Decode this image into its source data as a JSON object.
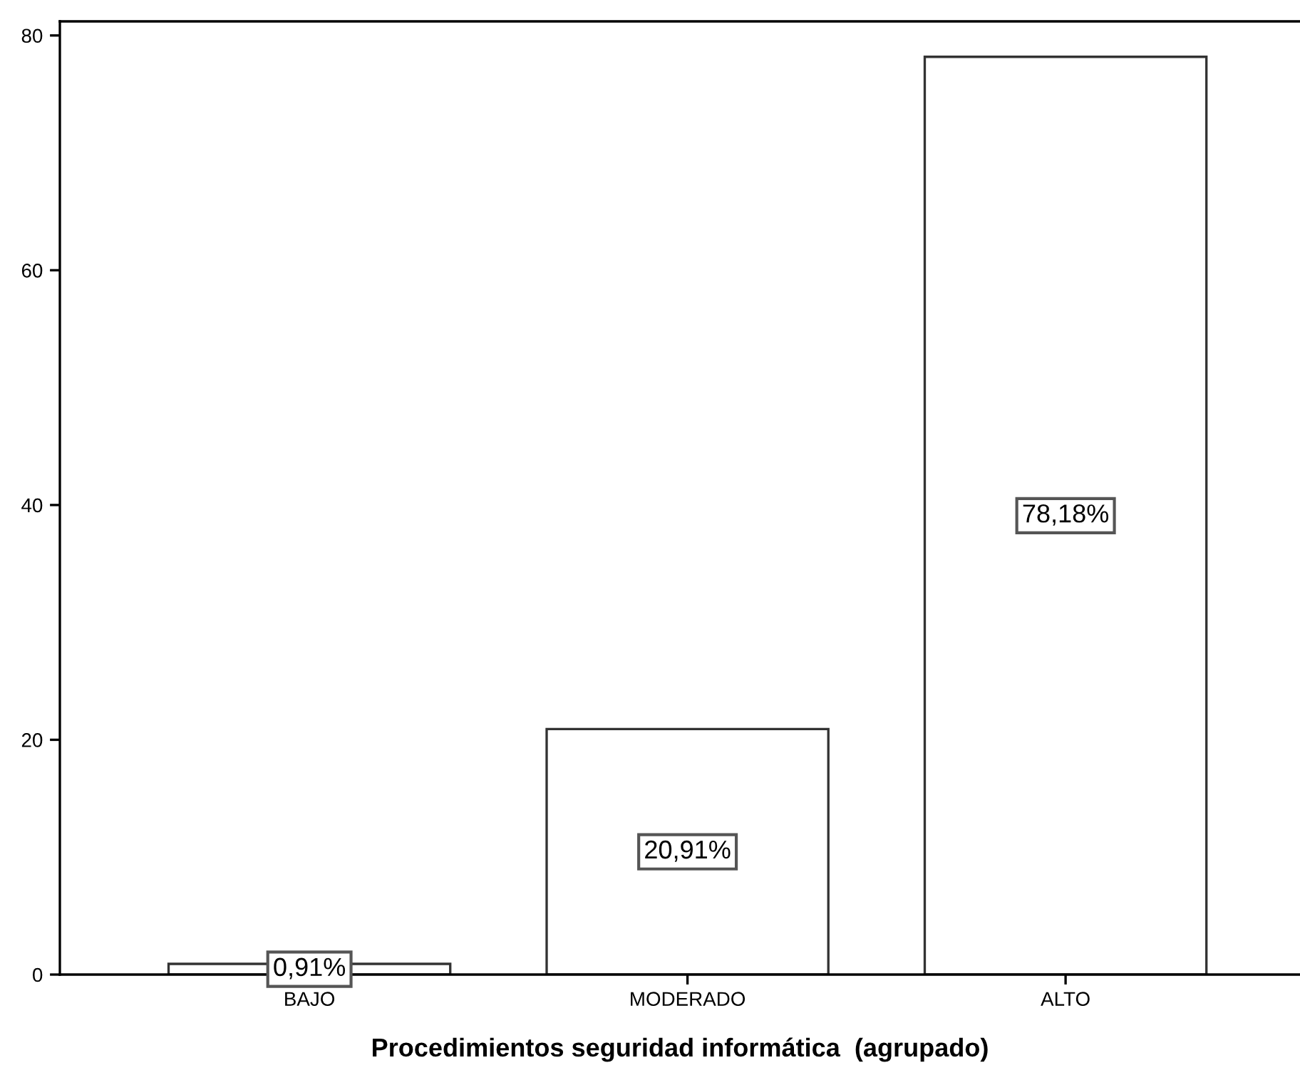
{
  "chart_data": {
    "type": "bar",
    "xlabel": "Procedimientos seguridad informática  (agrupado)",
    "categories": [
      "BAJO",
      "MODERADO",
      "ALTO"
    ],
    "values": [
      0.91,
      20.91,
      78.18
    ],
    "value_labels": [
      "0,91%",
      "20,91%",
      "78,18%"
    ],
    "color": "#333333",
    "ylim": [
      0,
      81.2
    ],
    "yticks": [
      0,
      20,
      40,
      60,
      80
    ],
    "grid": false,
    "legend": false
  }
}
